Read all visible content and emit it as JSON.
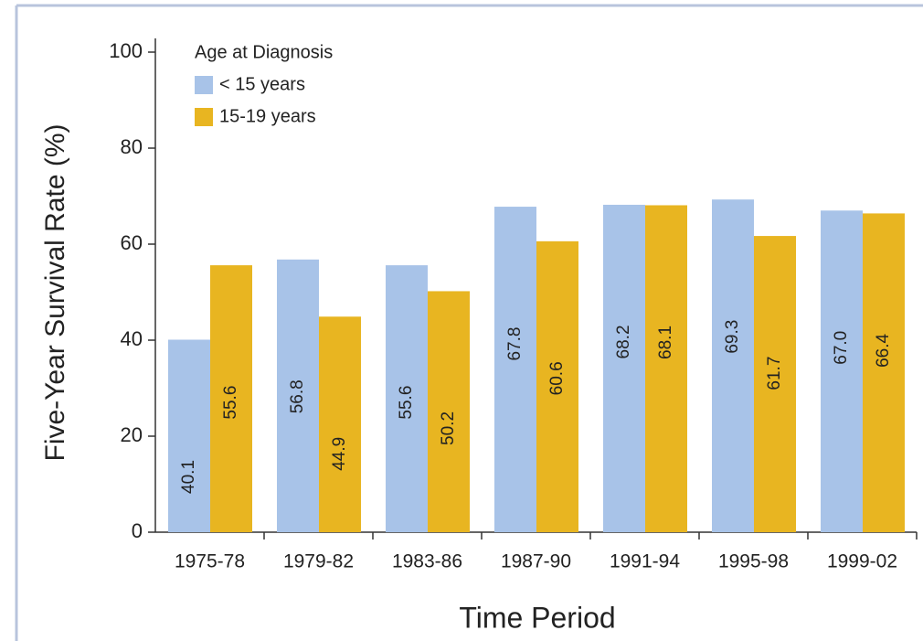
{
  "chart_data": {
    "type": "bar",
    "y_label": "Five-Year Survival Rate (%)",
    "x_label": "Time Period",
    "legend_title": "Age at Diagnosis",
    "categories": [
      "1975-78",
      "1979-82",
      "1983-86",
      "1987-90",
      "1991-94",
      "1995-98",
      "1999-02"
    ],
    "series": [
      {
        "name": "< 15 years",
        "color": "#a8c3e8",
        "values": [
          40.1,
          56.8,
          55.6,
          67.8,
          68.2,
          69.3,
          67.0
        ],
        "value_labels": [
          "40.1",
          "56.8",
          "55.6",
          "67.8",
          "68.2",
          "69.3",
          "67.0"
        ]
      },
      {
        "name": "15-19 years",
        "color": "#e8b521",
        "values": [
          55.6,
          44.9,
          50.2,
          60.6,
          68.1,
          61.7,
          66.4
        ],
        "value_labels": [
          "55.6",
          "44.9",
          "50.2",
          "60.6",
          "68.1",
          "61.7",
          "66.4"
        ]
      }
    ],
    "ylim": [
      0,
      100
    ],
    "yticks": [
      0,
      20,
      40,
      60,
      80,
      100
    ],
    "legend": "upper left",
    "grid": false
  }
}
